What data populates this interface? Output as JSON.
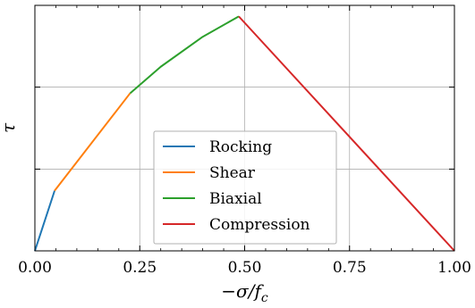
{
  "chart_data": {
    "type": "line",
    "title": "",
    "xlabel": "−σ/f",
    "xlabel_sub": "c",
    "ylabel": "τ",
    "xlim": [
      0,
      1
    ],
    "ylim": [
      0,
      1
    ],
    "xticks": [
      0,
      0.25,
      0.5,
      0.75,
      1.0
    ],
    "xtick_labels": [
      "0.00",
      "0.25",
      "0.50",
      "0.75",
      "1.00"
    ],
    "yticks": [
      0.333,
      0.667
    ],
    "ytick_labels": [],
    "grid": true,
    "legend_position": "lower-center",
    "series": [
      {
        "name": "Rocking",
        "color": "#1f77b4",
        "x": [
          0.0,
          0.047
        ],
        "y": [
          0.0,
          0.245
        ]
      },
      {
        "name": "Shear",
        "color": "#ff7f0e",
        "x": [
          0.047,
          0.227
        ],
        "y": [
          0.245,
          0.642
        ]
      },
      {
        "name": "Biaxial",
        "color": "#2ca02c",
        "x": [
          0.227,
          0.3,
          0.4,
          0.486
        ],
        "y": [
          0.642,
          0.75,
          0.872,
          0.955
        ]
      },
      {
        "name": "Compression",
        "color": "#d62728",
        "x": [
          0.486,
          1.0
        ],
        "y": [
          0.955,
          0.0
        ]
      }
    ]
  }
}
